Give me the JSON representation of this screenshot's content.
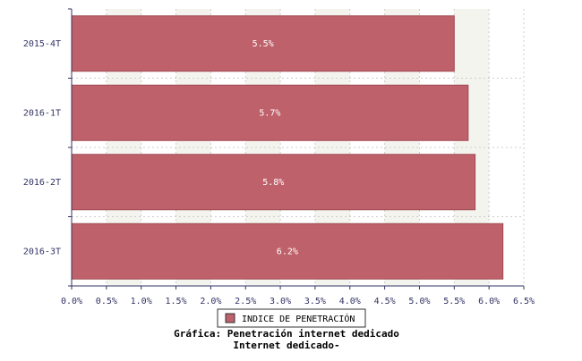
{
  "chart_data": {
    "type": "barh",
    "title": "Gráfica: Penetración internet dedicado",
    "subtitle": "Internet dedicado-",
    "categories": [
      "2015-4T",
      "2016-1T",
      "2016-2T",
      "2016-3T"
    ],
    "series": [
      {
        "name": "INDICE DE PENETRACIÓN",
        "color": "#bf616a",
        "values": [
          5.5,
          5.7,
          5.8,
          6.2
        ],
        "value_labels": [
          "5.5%",
          "5.7%",
          "5.8%",
          "6.2%"
        ]
      }
    ],
    "xlim": [
      0,
      6.5
    ],
    "xticks": [
      {
        "value": 0,
        "label": "0.0%"
      },
      {
        "value": 0.5,
        "label": "0.5%"
      },
      {
        "value": 1,
        "label": "1.0%"
      },
      {
        "value": 1.5,
        "label": "1.5%"
      },
      {
        "value": 2,
        "label": "2.0%"
      },
      {
        "value": 2.5,
        "label": "2.5%"
      },
      {
        "value": 3,
        "label": "3.0%"
      },
      {
        "value": 3.5,
        "label": "3.5%"
      },
      {
        "value": 4,
        "label": "4.0%"
      },
      {
        "value": 4.5,
        "label": "4.5%"
      },
      {
        "value": 5,
        "label": "5.0%"
      },
      {
        "value": 5.5,
        "label": "5.5%"
      },
      {
        "value": 6,
        "label": "6.0%"
      },
      {
        "value": 6.5,
        "label": "6.5%"
      }
    ],
    "grid": true
  }
}
